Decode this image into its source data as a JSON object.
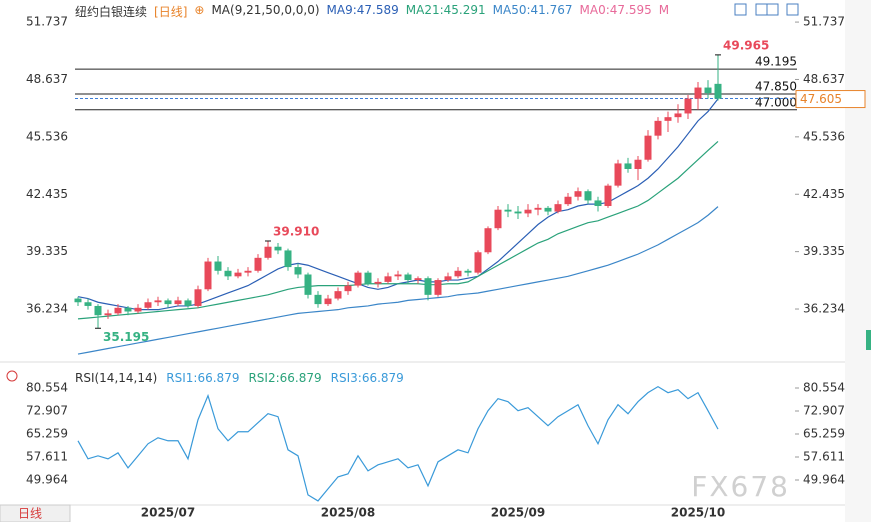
{
  "header": {
    "title": "纽约白银连续",
    "period": "[日线]",
    "ma_params": "MA(9,21,50,0,0,0)",
    "extra_legend": [
      {
        "text": "MA0:47.595",
        "color": "#e86a9a"
      },
      {
        "text": "M",
        "color": "#e86a9a"
      }
    ]
  },
  "footer": {
    "tab": "日线",
    "watermark": "FX678"
  },
  "chart_data": [
    {
      "type": "candlestick",
      "up_color": "#e8495a",
      "down_color": "#36b283",
      "ylim": [
        33.75,
        52.93
      ],
      "yticks": [
        36.234,
        39.335,
        42.435,
        45.536,
        48.637,
        51.737
      ],
      "candles": [
        [
          36.8,
          36.9,
          36.4,
          36.6
        ],
        [
          36.6,
          36.8,
          36.2,
          36.4
        ],
        [
          36.4,
          36.5,
          35.195,
          35.9
        ],
        [
          35.9,
          36.2,
          35.7,
          36.0
        ],
        [
          36.0,
          36.5,
          35.9,
          36.3
        ],
        [
          36.3,
          36.4,
          35.9,
          36.1
        ],
        [
          36.1,
          36.5,
          36.0,
          36.3
        ],
        [
          36.3,
          36.8,
          36.2,
          36.6
        ],
        [
          36.6,
          36.9,
          36.4,
          36.7
        ],
        [
          36.7,
          36.8,
          36.3,
          36.5
        ],
        [
          36.5,
          36.9,
          36.4,
          36.7
        ],
        [
          36.7,
          36.8,
          36.3,
          36.4
        ],
        [
          36.4,
          37.5,
          36.3,
          37.3
        ],
        [
          37.3,
          39.0,
          37.2,
          38.8
        ],
        [
          38.8,
          39.1,
          38.1,
          38.3
        ],
        [
          38.3,
          38.5,
          37.8,
          38.0
        ],
        [
          38.0,
          38.4,
          37.9,
          38.2
        ],
        [
          38.2,
          38.5,
          38.0,
          38.3
        ],
        [
          38.3,
          39.2,
          38.2,
          39.0
        ],
        [
          39.0,
          39.91,
          38.9,
          39.6
        ],
        [
          39.6,
          39.8,
          39.2,
          39.4
        ],
        [
          39.4,
          39.5,
          38.3,
          38.5
        ],
        [
          38.5,
          38.7,
          37.9,
          38.1
        ],
        [
          38.1,
          38.2,
          36.8,
          37.0
        ],
        [
          37.0,
          37.2,
          36.3,
          36.5
        ],
        [
          36.5,
          37.0,
          36.4,
          36.8
        ],
        [
          36.8,
          37.4,
          36.7,
          37.2
        ],
        [
          37.2,
          37.7,
          37.0,
          37.5
        ],
        [
          37.5,
          38.3,
          37.4,
          38.2
        ],
        [
          38.2,
          38.3,
          37.5,
          37.6
        ],
        [
          37.6,
          37.9,
          37.4,
          37.7
        ],
        [
          37.7,
          38.2,
          37.6,
          38.0
        ],
        [
          38.0,
          38.3,
          37.8,
          38.1
        ],
        [
          38.1,
          38.2,
          37.6,
          37.8
        ],
        [
          37.8,
          38.0,
          37.6,
          37.9
        ],
        [
          37.9,
          38.0,
          36.7,
          37.0
        ],
        [
          37.0,
          37.9,
          36.9,
          37.8
        ],
        [
          37.8,
          38.2,
          37.7,
          38.0
        ],
        [
          38.0,
          38.5,
          37.9,
          38.3
        ],
        [
          38.3,
          38.4,
          38.0,
          38.2
        ],
        [
          38.2,
          39.4,
          38.1,
          39.3
        ],
        [
          39.3,
          40.7,
          39.2,
          40.6
        ],
        [
          40.6,
          41.8,
          40.5,
          41.6
        ],
        [
          41.6,
          41.9,
          41.2,
          41.5
        ],
        [
          41.5,
          41.8,
          41.1,
          41.4
        ],
        [
          41.4,
          41.9,
          41.2,
          41.6
        ],
        [
          41.6,
          41.9,
          41.3,
          41.7
        ],
        [
          41.7,
          41.8,
          41.3,
          41.5
        ],
        [
          41.5,
          42.1,
          41.4,
          41.9
        ],
        [
          41.9,
          42.5,
          41.8,
          42.3
        ],
        [
          42.3,
          42.8,
          42.1,
          42.6
        ],
        [
          42.6,
          42.7,
          41.9,
          42.1
        ],
        [
          42.1,
          42.3,
          41.5,
          41.8
        ],
        [
          41.8,
          43.0,
          41.7,
          42.9
        ],
        [
          42.9,
          44.3,
          42.8,
          44.1
        ],
        [
          44.1,
          44.4,
          43.6,
          43.8
        ],
        [
          43.8,
          44.5,
          43.2,
          44.3
        ],
        [
          44.3,
          45.9,
          44.2,
          45.6
        ],
        [
          45.6,
          46.6,
          45.4,
          46.4
        ],
        [
          46.4,
          46.9,
          45.8,
          46.6
        ],
        [
          46.6,
          47.3,
          46.3,
          46.8
        ],
        [
          46.8,
          47.8,
          46.5,
          47.6
        ],
        [
          47.6,
          48.5,
          47.0,
          48.2
        ],
        [
          48.2,
          48.6,
          47.6,
          47.9
        ],
        [
          48.4,
          49.965,
          47.5,
          47.6
        ]
      ],
      "series": [
        {
          "name": "MA9:47.589",
          "color": "#2b5fb5",
          "values": [
            36.9,
            36.8,
            36.6,
            36.5,
            36.4,
            36.3,
            36.2,
            36.2,
            36.2,
            36.3,
            36.4,
            36.4,
            36.5,
            36.7,
            36.9,
            37.1,
            37.3,
            37.5,
            37.8,
            38.1,
            38.4,
            38.6,
            38.7,
            38.6,
            38.4,
            38.2,
            38.0,
            37.8,
            37.6,
            37.4,
            37.3,
            37.4,
            37.6,
            37.7,
            37.8,
            37.7,
            37.7,
            37.8,
            37.8,
            37.9,
            38.0,
            38.4,
            38.8,
            39.3,
            39.8,
            40.3,
            40.8,
            41.2,
            41.5,
            41.6,
            41.8,
            41.9,
            41.9,
            42.0,
            42.3,
            42.6,
            42.9,
            43.3,
            43.8,
            44.4,
            45.0,
            45.7,
            46.4,
            46.9,
            47.589
          ]
        },
        {
          "name": "MA21:45.291",
          "color": "#2aa27a",
          "values": [
            35.7,
            35.75,
            35.8,
            35.85,
            35.9,
            35.95,
            36.0,
            36.05,
            36.1,
            36.15,
            36.2,
            36.25,
            36.3,
            36.4,
            36.5,
            36.6,
            36.7,
            36.8,
            36.9,
            37.0,
            37.15,
            37.3,
            37.4,
            37.45,
            37.5,
            37.5,
            37.5,
            37.5,
            37.55,
            37.6,
            37.6,
            37.6,
            37.6,
            37.6,
            37.6,
            37.55,
            37.55,
            37.6,
            37.6,
            37.7,
            38.0,
            38.3,
            38.6,
            38.9,
            39.2,
            39.5,
            39.8,
            40.0,
            40.3,
            40.5,
            40.7,
            40.9,
            41.0,
            41.2,
            41.4,
            41.6,
            41.8,
            42.1,
            42.5,
            42.9,
            43.3,
            43.8,
            44.3,
            44.8,
            45.291
          ]
        },
        {
          "name": "MA50:41.767",
          "color": "#3b86c8",
          "values": [
            33.8,
            33.9,
            34.0,
            34.1,
            34.2,
            34.3,
            34.4,
            34.5,
            34.6,
            34.7,
            34.8,
            34.9,
            35.0,
            35.1,
            35.2,
            35.3,
            35.4,
            35.5,
            35.6,
            35.7,
            35.8,
            35.9,
            36.0,
            36.05,
            36.1,
            36.15,
            36.2,
            36.3,
            36.35,
            36.4,
            36.5,
            36.55,
            36.6,
            36.7,
            36.75,
            36.8,
            36.85,
            36.9,
            37.0,
            37.05,
            37.1,
            37.2,
            37.3,
            37.4,
            37.5,
            37.6,
            37.7,
            37.8,
            37.9,
            38.0,
            38.15,
            38.3,
            38.45,
            38.6,
            38.8,
            39.0,
            39.2,
            39.45,
            39.7,
            40.0,
            40.3,
            40.6,
            40.9,
            41.3,
            41.767
          ]
        }
      ],
      "levels": [
        49.195,
        {
          "value": 47.85,
          "label": "47.850"
        },
        {
          "value": 47,
          "label": "47.000"
        }
      ],
      "last_price": 47.605,
      "annotations": [
        {
          "text": "49.965",
          "color": "#e8495a"
        },
        {
          "text": "39.910",
          "color": "#e8495a"
        },
        {
          "text": "35.195",
          "color": "#36b283"
        }
      ]
    },
    {
      "type": "line",
      "title": "RSI(14,14,14)",
      "ylim": [
        41.65,
        85.87
      ],
      "yticks": [
        80.554,
        72.907,
        65.259,
        57.611,
        49.964
      ],
      "categories": [
        null,
        null,
        null,
        null,
        null,
        null,
        null,
        null,
        null,
        "2025/07",
        null,
        null,
        null,
        null,
        null,
        null,
        null,
        null,
        null,
        null,
        null,
        null,
        null,
        null,
        null,
        null,
        null,
        "2025/08",
        null,
        null,
        null,
        null,
        null,
        null,
        null,
        null,
        null,
        null,
        null,
        null,
        null,
        null,
        null,
        null,
        "2025/09",
        null,
        null,
        null,
        null,
        null,
        null,
        null,
        null,
        null,
        null,
        null,
        null,
        null,
        null,
        null,
        null,
        null,
        "2025/10",
        null,
        null
      ],
      "series": [
        {
          "name": "RSI1:66.879",
          "color": "#3a9ad9",
          "values": [
            63,
            57,
            58,
            57,
            59,
            54,
            58,
            62,
            64,
            63,
            63,
            57,
            70,
            78,
            67,
            63,
            66,
            66,
            69,
            72,
            71,
            60,
            58,
            45,
            43,
            47,
            51,
            52,
            58,
            53,
            55,
            56,
            57,
            54,
            55,
            48,
            56,
            58,
            60,
            59,
            67,
            73,
            77,
            76,
            73,
            74,
            71,
            68,
            71,
            73,
            75,
            68,
            62,
            70,
            75,
            72,
            76,
            79,
            81,
            79,
            80,
            77,
            79,
            73,
            66.879
          ]
        }
      ],
      "extra_legend": [
        {
          "text": "RSI2:66.879",
          "color": "#2aa27a"
        },
        {
          "text": "RSI3:66.879",
          "color": "#3a9ad9"
        }
      ]
    }
  ]
}
